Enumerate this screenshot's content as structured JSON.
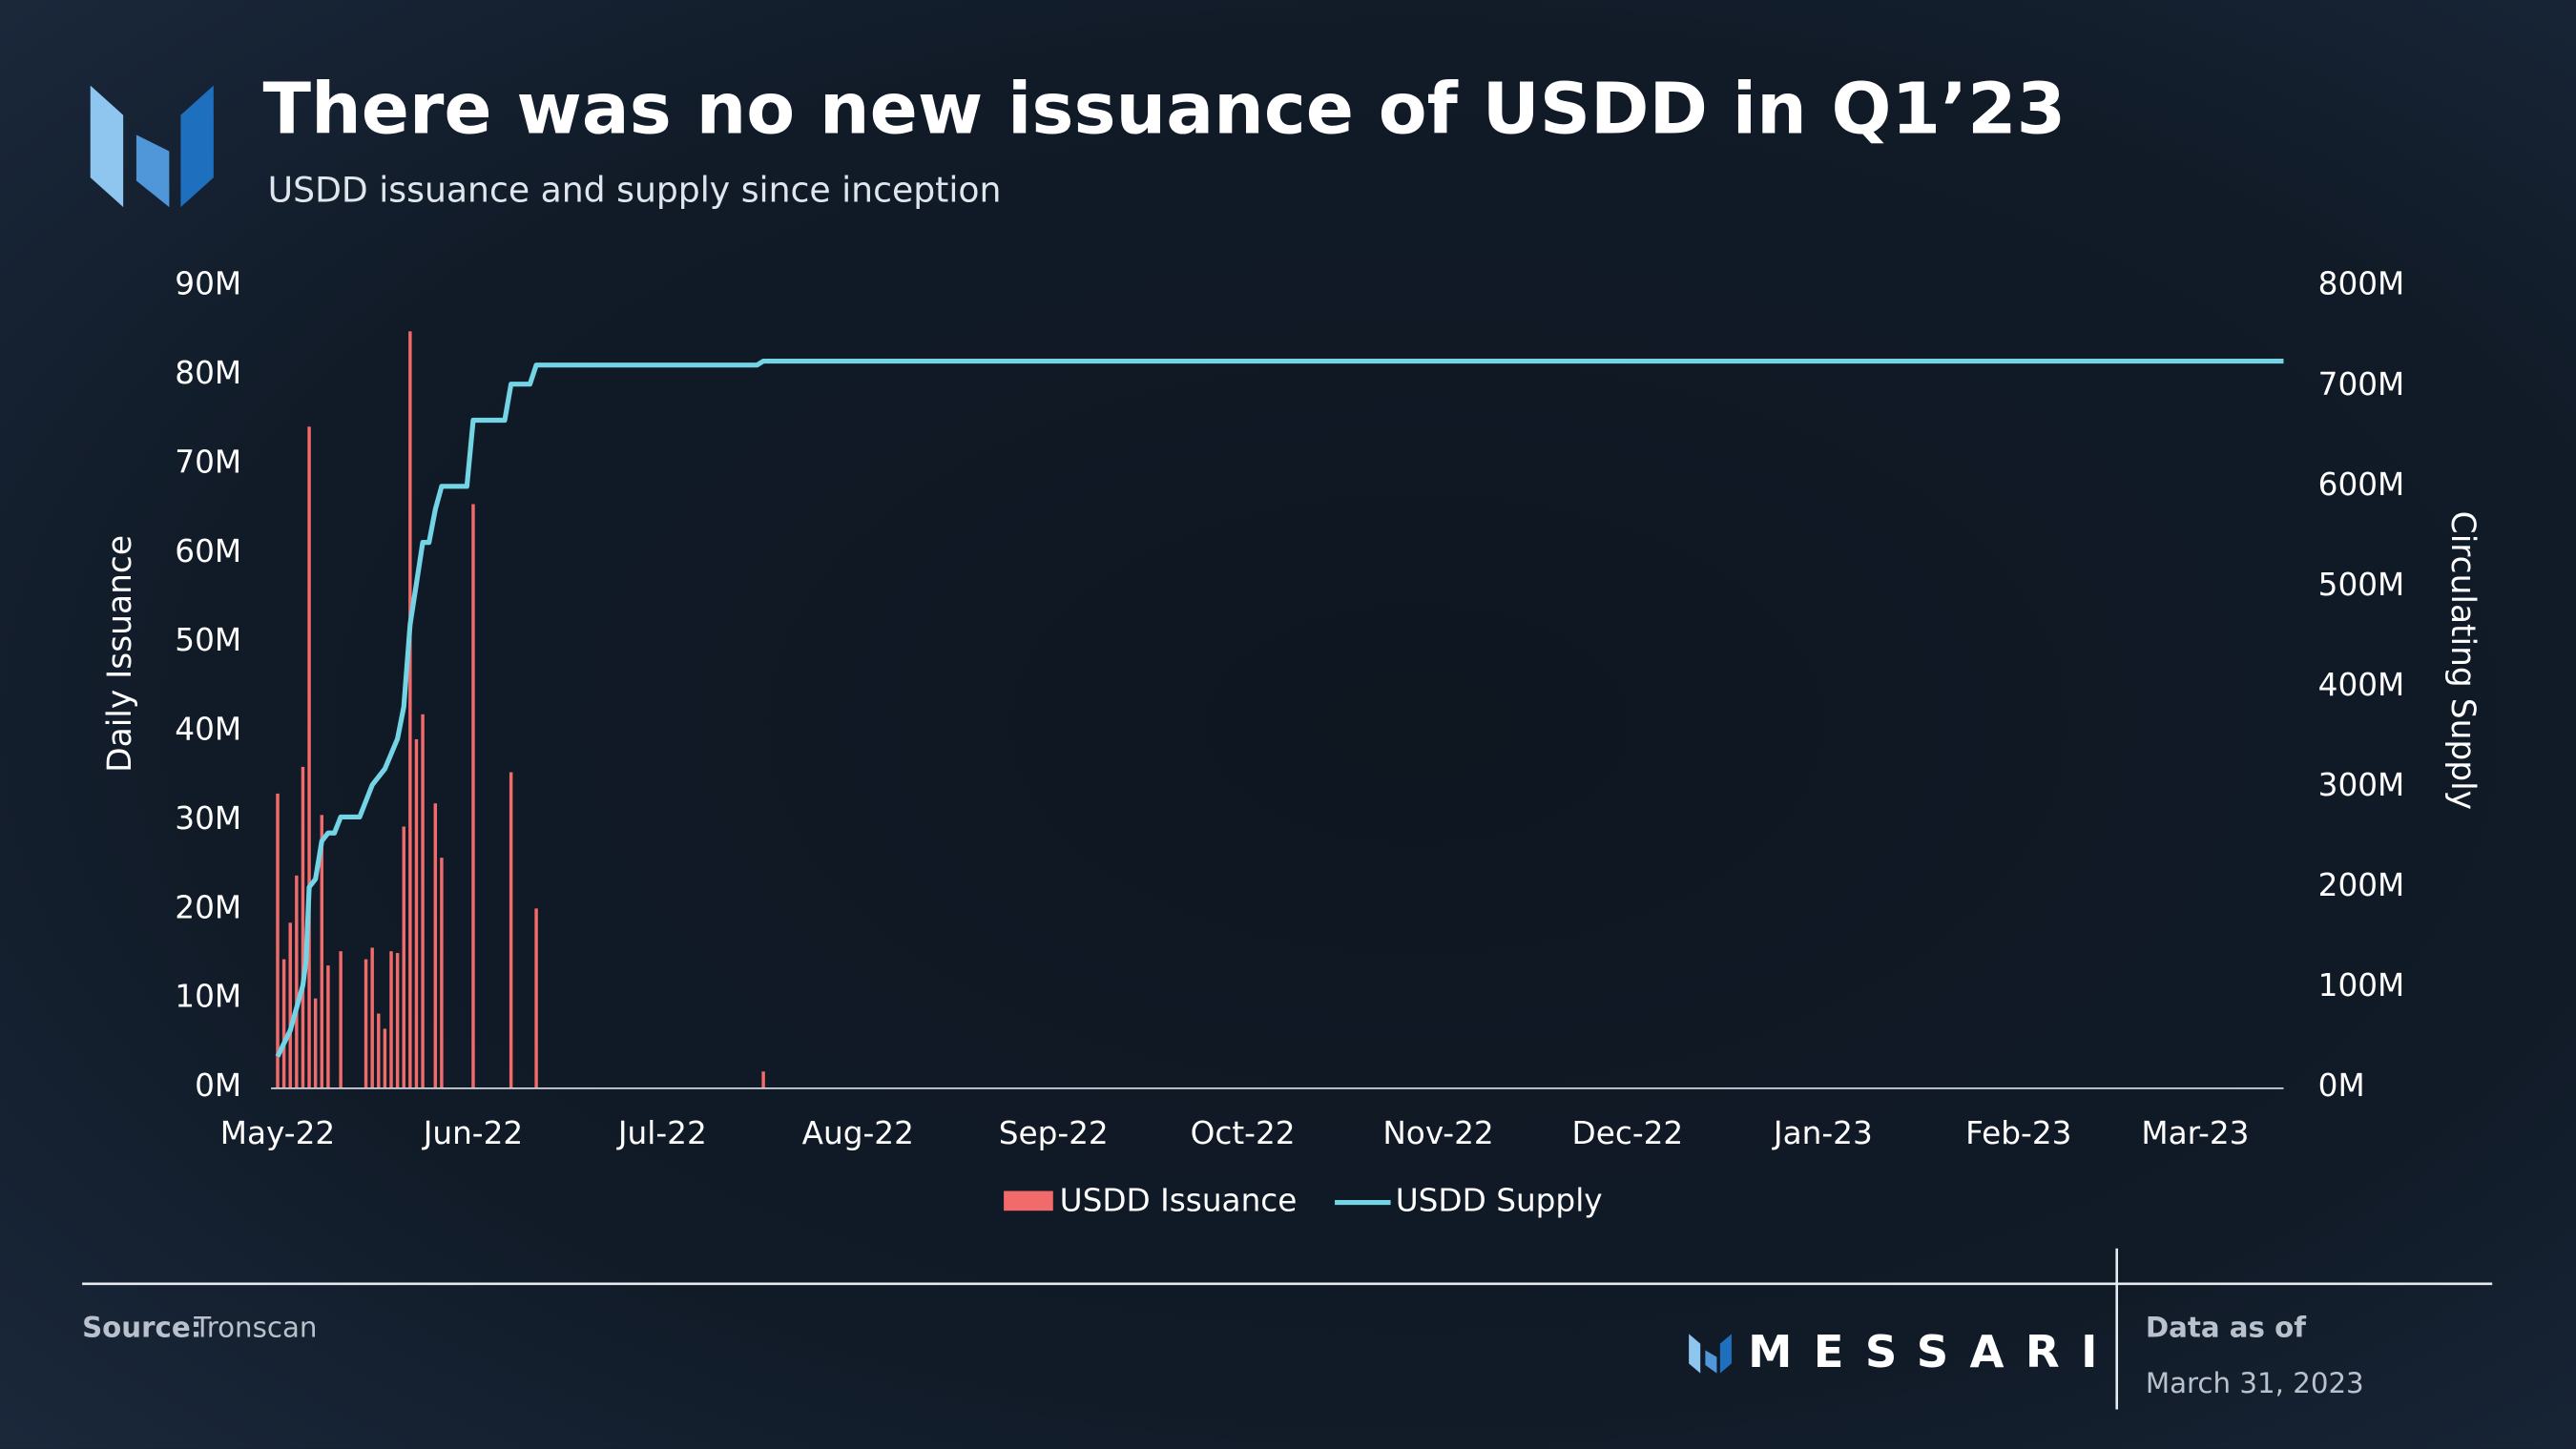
{
  "chart_data": {
    "type": "combo",
    "title": "There was no new issuance of USDD in Q1’23",
    "subtitle": "USDD issuance and supply since inception",
    "y_label": "Daily Issuance",
    "y2_label": "Circulating Supply",
    "xlim": [
      0,
      318
    ],
    "xticks": [
      {
        "value": 0,
        "label": "May-22"
      },
      {
        "value": 31,
        "label": "Jun-22"
      },
      {
        "value": 61,
        "label": "Jul-22"
      },
      {
        "value": 92,
        "label": "Aug-22"
      },
      {
        "value": 123,
        "label": "Sep-22"
      },
      {
        "value": 153,
        "label": "Oct-22"
      },
      {
        "value": 184,
        "label": "Nov-22"
      },
      {
        "value": 214,
        "label": "Dec-22"
      },
      {
        "value": 245,
        "label": "Jan-23"
      },
      {
        "value": 276,
        "label": "Feb-23"
      },
      {
        "value": 304,
        "label": "Mar-23"
      }
    ],
    "ylim": [
      0,
      90
    ],
    "yticks": [
      {
        "value": 0,
        "label": "0M"
      },
      {
        "value": 10,
        "label": "10M"
      },
      {
        "value": 20,
        "label": "20M"
      },
      {
        "value": 30,
        "label": "30M"
      },
      {
        "value": 40,
        "label": "40M"
      },
      {
        "value": 50,
        "label": "50M"
      },
      {
        "value": 60,
        "label": "60M"
      },
      {
        "value": 70,
        "label": "70M"
      },
      {
        "value": 80,
        "label": "80M"
      },
      {
        "value": 90,
        "label": "90M"
      }
    ],
    "y2lim": [
      0,
      800
    ],
    "y2ticks": [
      {
        "value": 0,
        "label": "0M"
      },
      {
        "value": 100,
        "label": "100M"
      },
      {
        "value": 200,
        "label": "200M"
      },
      {
        "value": 300,
        "label": "300M"
      },
      {
        "value": 400,
        "label": "400M"
      },
      {
        "value": 500,
        "label": "500M"
      },
      {
        "value": 600,
        "label": "600M"
      },
      {
        "value": 700,
        "label": "700M"
      },
      {
        "value": 800,
        "label": "800M"
      }
    ],
    "series": [
      {
        "name": "USDD Issuance",
        "type": "bar",
        "color": "#f26b6b",
        "x": [
          0,
          1,
          2,
          3,
          4,
          5,
          6,
          7,
          8,
          10,
          14,
          15,
          16,
          17,
          18,
          19,
          20,
          21,
          22,
          23,
          25,
          26,
          31,
          37,
          41,
          77
        ],
        "values": [
          33,
          14.4,
          18.5,
          23.8,
          36,
          74.2,
          10,
          30.6,
          13.7,
          15.3,
          14.4,
          15.7,
          8.3,
          6.6,
          15.3,
          15.1,
          29.3,
          84.9,
          39.1,
          41.9,
          31.9,
          25.8,
          65.5,
          35.4,
          20.1,
          1.8
        ]
      },
      {
        "name": "USDD Supply",
        "type": "line",
        "axis": "y2",
        "color": "#72d4e4",
        "x": [
          0,
          2,
          4,
          4.5,
          5,
          6,
          7,
          8,
          9,
          10,
          13,
          15,
          17,
          19,
          20,
          21,
          22,
          23,
          24,
          25,
          26,
          30,
          31,
          36,
          37,
          40,
          41,
          76,
          77,
          318
        ],
        "values": [
          31,
          57,
          102,
          126,
          200,
          208,
          246,
          254,
          254,
          270,
          270,
          302,
          318,
          348,
          380,
          462,
          503,
          544,
          544,
          577,
          600,
          600,
          666,
          666,
          702,
          702,
          721,
          721,
          725,
          725
        ]
      }
    ]
  },
  "footer": {
    "source_label": "Source:",
    "source": "Tronscan",
    "brand": "MESSARI",
    "date_label": "Data as of",
    "date": "March 31, 2023"
  }
}
